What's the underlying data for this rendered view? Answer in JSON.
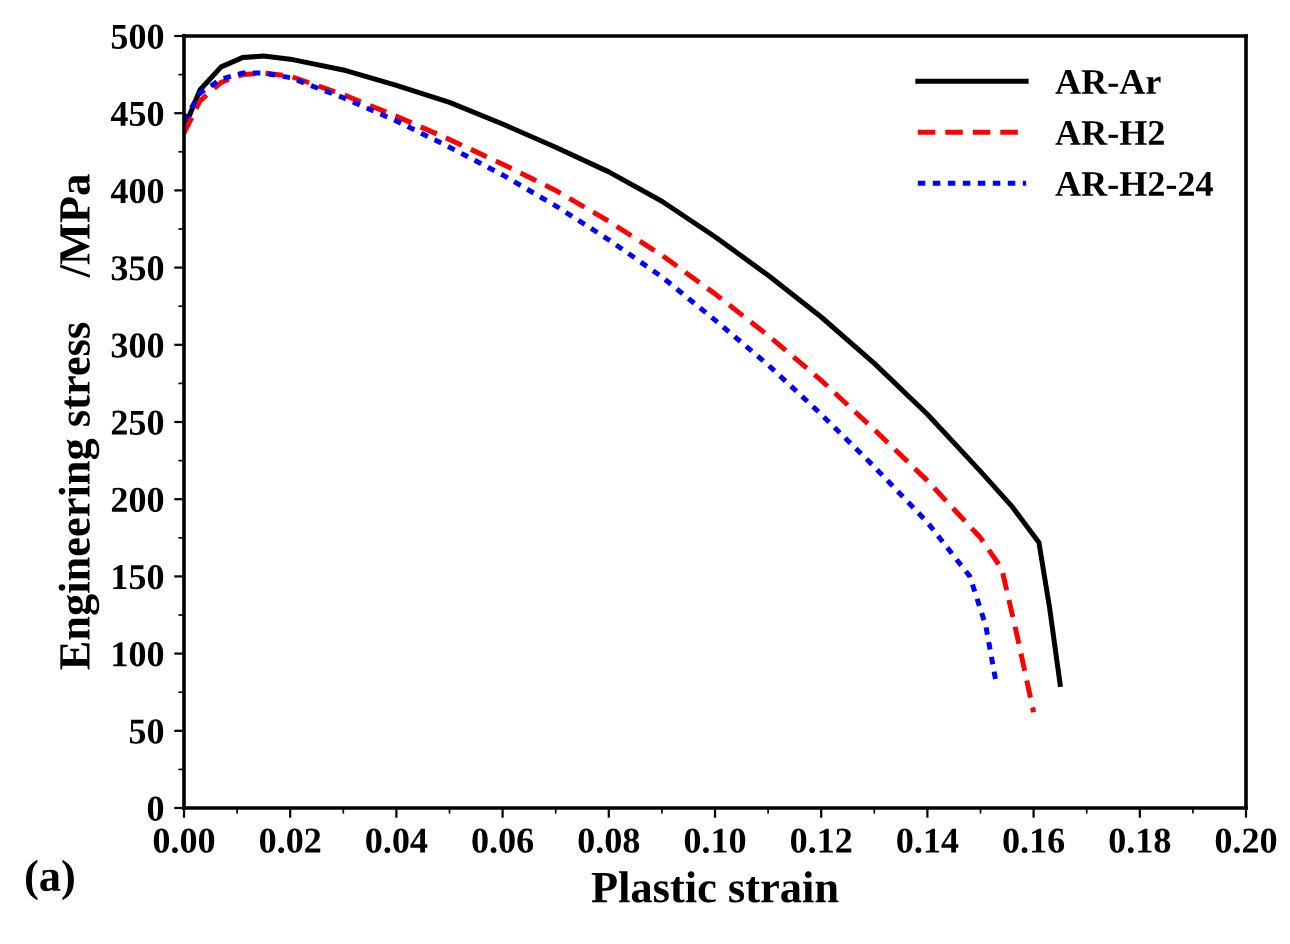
{
  "chart_data": {
    "type": "line",
    "xlabel": "Plastic strain",
    "ylabel": "Engineering stress    /MPa",
    "xlim": [
      0,
      0.2
    ],
    "ylim": [
      0,
      500
    ],
    "xticks": [
      {
        "value": 0,
        "label": "0.00"
      },
      {
        "value": 0.02,
        "label": "0.02"
      },
      {
        "value": 0.04,
        "label": "0.04"
      },
      {
        "value": 0.06,
        "label": "0.06"
      },
      {
        "value": 0.08,
        "label": "0.08"
      },
      {
        "value": 0.1,
        "label": "0.10"
      },
      {
        "value": 0.12,
        "label": "0.12"
      },
      {
        "value": 0.14,
        "label": "0.14"
      },
      {
        "value": 0.16,
        "label": "0.16"
      },
      {
        "value": 0.18,
        "label": "0.18"
      },
      {
        "value": 0.2,
        "label": "0.20"
      }
    ],
    "yticks": [
      0,
      50,
      100,
      150,
      200,
      250,
      300,
      350,
      400,
      450,
      500
    ],
    "legend": "top right",
    "grid": false,
    "annotations": [
      "(a)"
    ],
    "series": [
      {
        "name": "AR-Ar",
        "color": "#000000",
        "line_style": "solid",
        "x": [
          0,
          0.003,
          0.007,
          0.011,
          0.015,
          0.02,
          0.03,
          0.04,
          0.05,
          0.06,
          0.07,
          0.08,
          0.09,
          0.1,
          0.11,
          0.12,
          0.13,
          0.14,
          0.15,
          0.156,
          0.161,
          0.163,
          0.165
        ],
        "values": [
          440,
          465,
          480,
          486,
          487,
          485,
          478,
          468,
          457,
          443,
          428,
          412,
          393,
          370,
          345,
          318,
          288,
          255,
          218,
          195,
          172,
          130,
          80
        ]
      },
      {
        "name": "AR-H2",
        "color": "#ff0000",
        "line_style": "dashed",
        "x": [
          0,
          0.003,
          0.007,
          0.011,
          0.015,
          0.02,
          0.03,
          0.04,
          0.05,
          0.06,
          0.07,
          0.08,
          0.09,
          0.1,
          0.11,
          0.12,
          0.13,
          0.14,
          0.15,
          0.154,
          0.157,
          0.16
        ],
        "values": [
          437,
          458,
          470,
          475,
          476,
          474,
          462,
          448,
          433,
          417,
          400,
          380,
          358,
          333,
          306,
          277,
          245,
          212,
          175,
          155,
          110,
          62
        ]
      },
      {
        "name": "AR-H2-24",
        "color": "#0000ff",
        "line_style": "dotted",
        "x": [
          0,
          0.003,
          0.007,
          0.011,
          0.015,
          0.02,
          0.03,
          0.04,
          0.05,
          0.06,
          0.07,
          0.08,
          0.09,
          0.1,
          0.11,
          0.12,
          0.13,
          0.14,
          0.148,
          0.151,
          0.153
        ],
        "values": [
          445,
          463,
          472,
          476,
          476,
          473,
          460,
          445,
          428,
          410,
          390,
          368,
          344,
          316,
          287,
          255,
          221,
          185,
          150,
          118,
          80
        ]
      }
    ]
  }
}
